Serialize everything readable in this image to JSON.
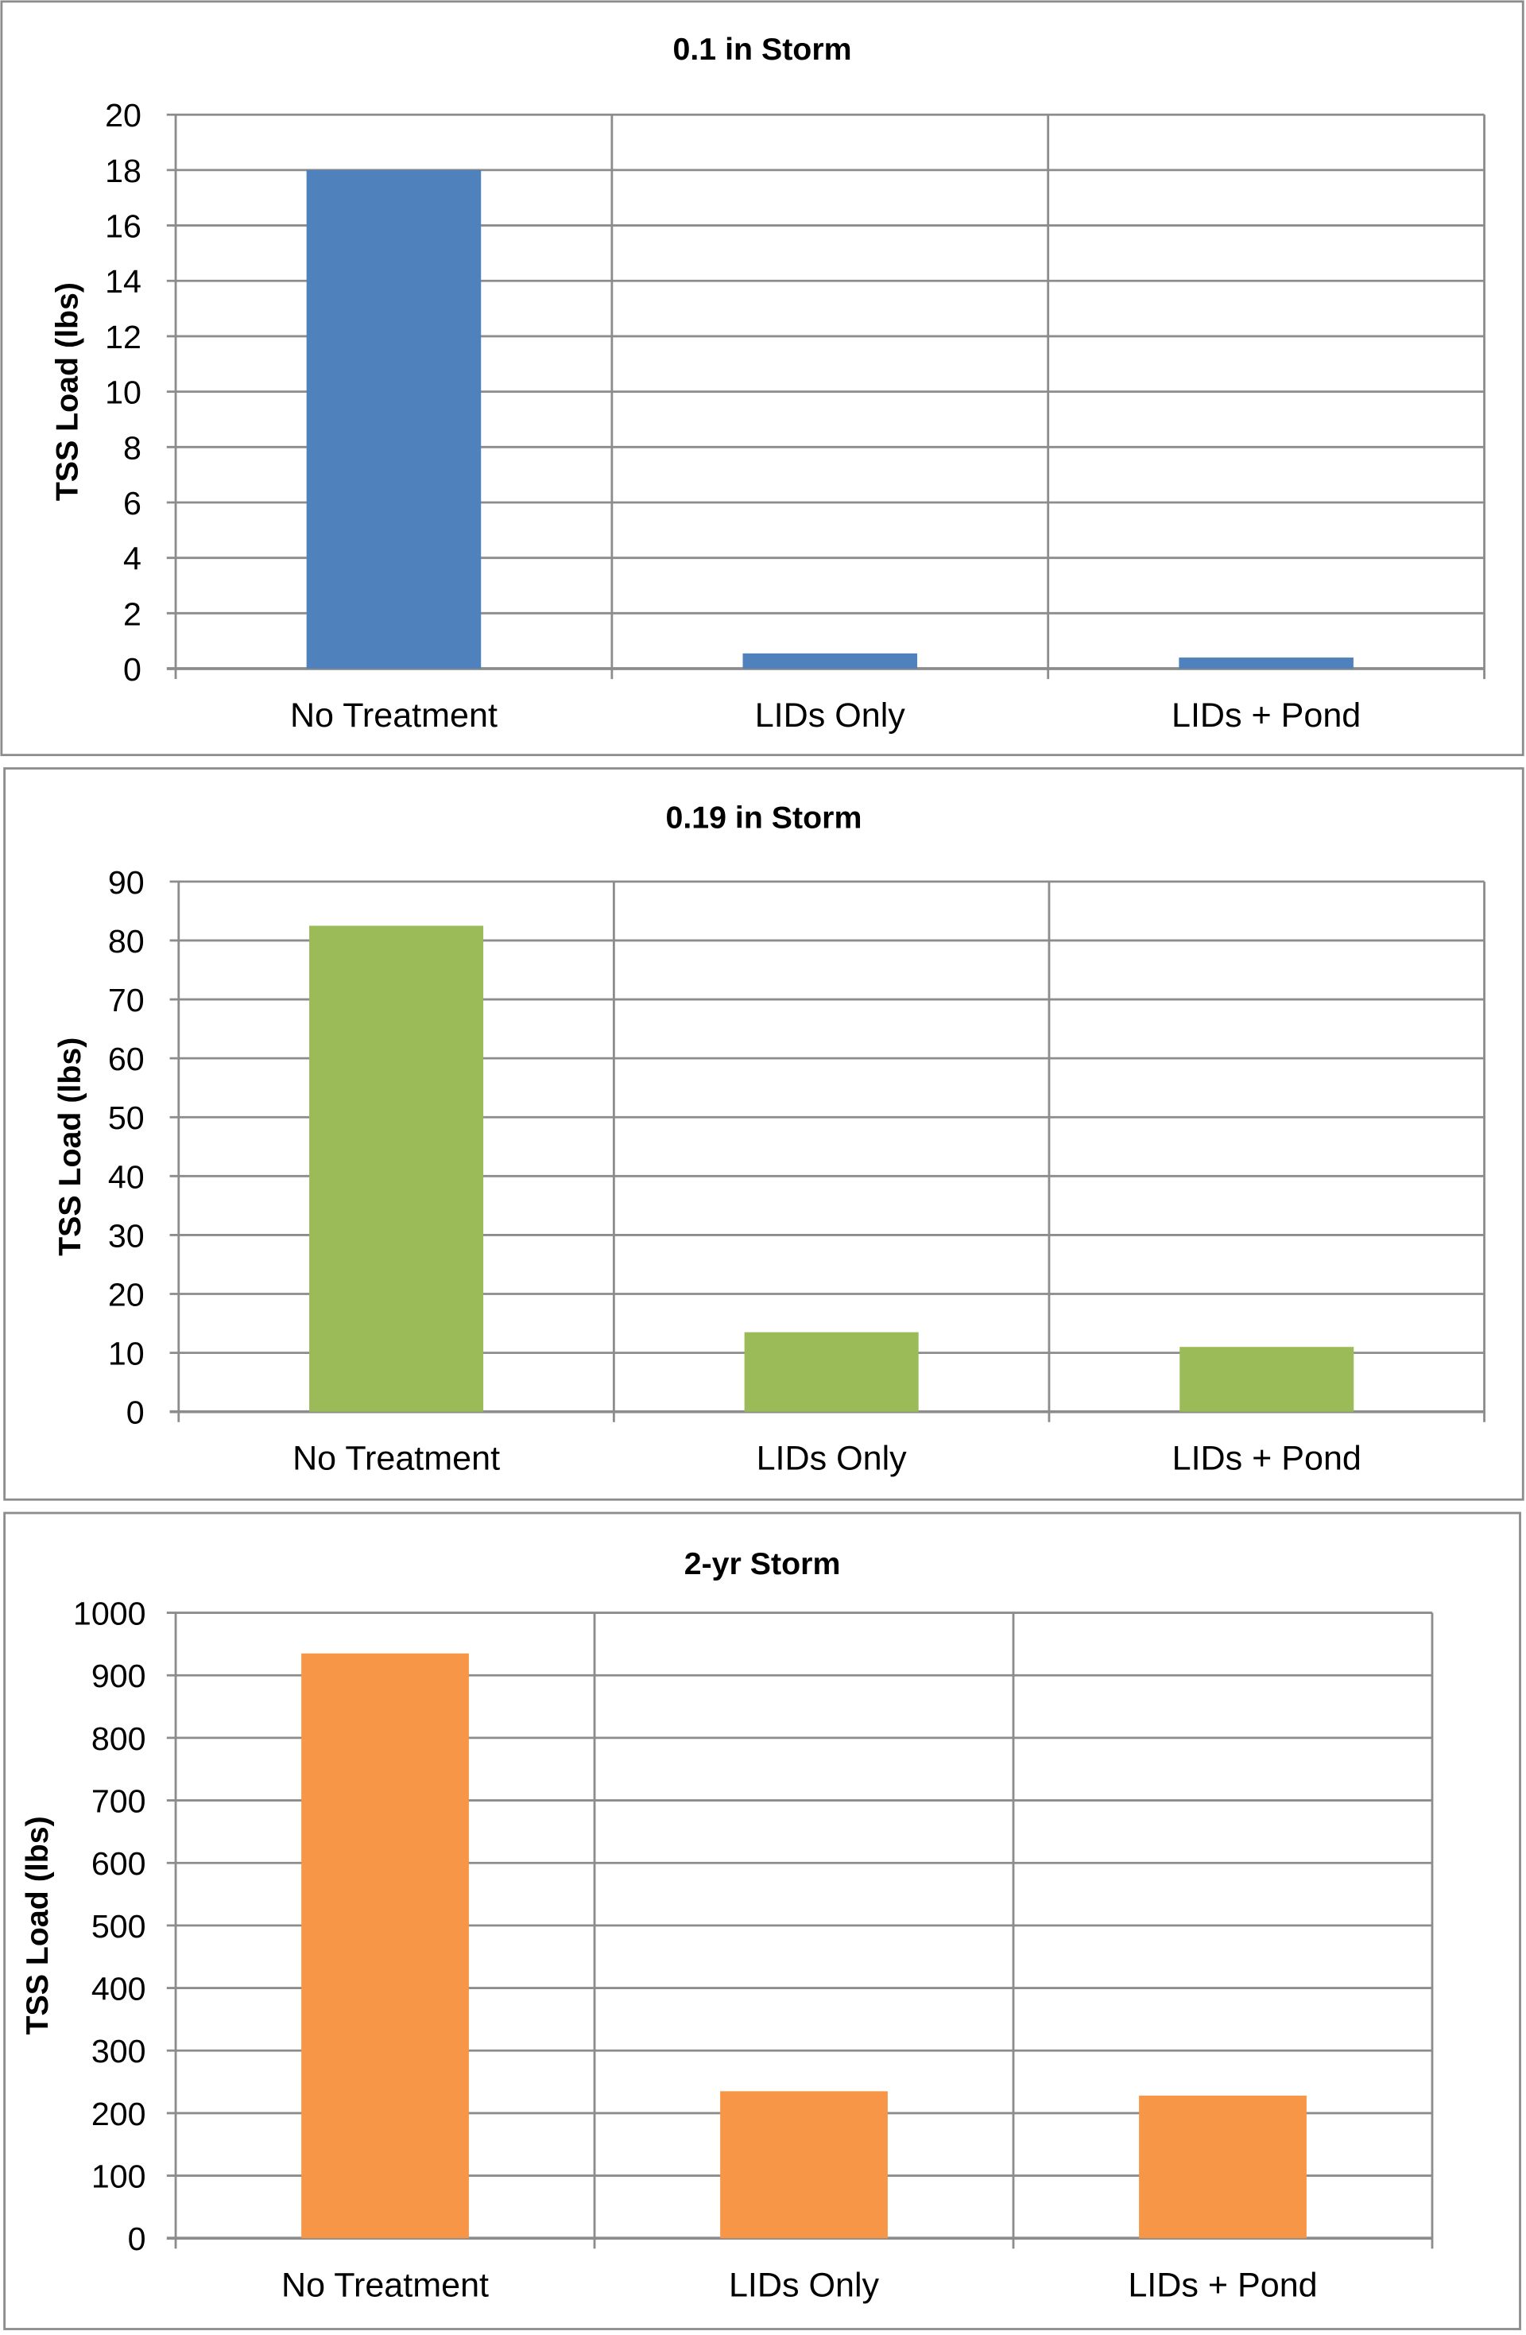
{
  "chart_data": [
    {
      "type": "bar",
      "title": "0.1 in Storm",
      "xlabel": "",
      "ylabel": "TSS Load (lbs)",
      "categories": [
        "No Treatment",
        "LIDs Only",
        "LIDs + Pond"
      ],
      "values": [
        18.0,
        0.55,
        0.4
      ],
      "ylim": [
        0,
        20
      ],
      "yticks": [
        0,
        2,
        4,
        6,
        8,
        10,
        12,
        14,
        16,
        18,
        20
      ],
      "color": "#4F81BD",
      "grid": true
    },
    {
      "type": "bar",
      "title": "0.19 in Storm",
      "xlabel": "",
      "ylabel": "TSS Load (lbs)",
      "categories": [
        "No Treatment",
        "LIDs Only",
        "LIDs + Pond"
      ],
      "values": [
        82.5,
        13.5,
        11.0
      ],
      "ylim": [
        0,
        90
      ],
      "yticks": [
        0,
        10,
        20,
        30,
        40,
        50,
        60,
        70,
        80,
        90
      ],
      "color": "#9BBB59",
      "grid": true
    },
    {
      "type": "bar",
      "title": "2-yr Storm",
      "xlabel": "",
      "ylabel": "TSS Load (lbs)",
      "categories": [
        "No Treatment",
        "LIDs Only",
        "LIDs + Pond"
      ],
      "values": [
        935,
        235,
        228
      ],
      "ylim": [
        0,
        1000
      ],
      "yticks": [
        0,
        100,
        200,
        300,
        400,
        500,
        600,
        700,
        800,
        900,
        1000
      ],
      "color": "#F79646",
      "grid": true
    }
  ]
}
